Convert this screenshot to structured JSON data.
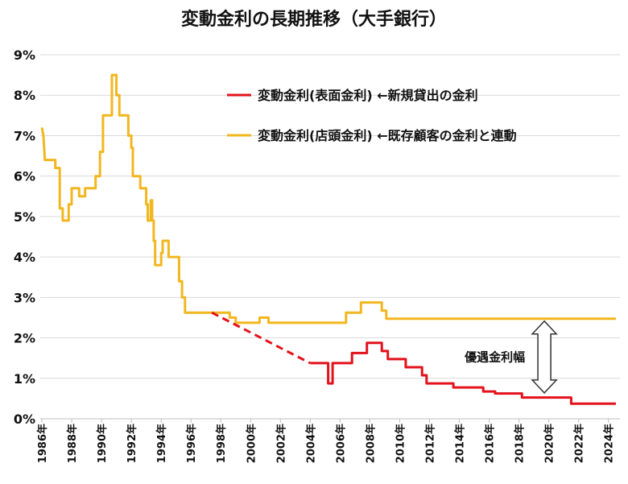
{
  "chart_data": {
    "type": "line",
    "title": "変動金利の長期推移（大手銀行）",
    "y_unit": "%",
    "ylim": [
      0,
      9
    ],
    "y_ticks": [
      "0%",
      "1%",
      "2%",
      "3%",
      "4%",
      "5%",
      "6%",
      "7%",
      "8%",
      "9%"
    ],
    "x_range": [
      1986,
      2024.5
    ],
    "x_ticks": [
      "1986年",
      "1988年",
      "1990年",
      "1992年",
      "1994年",
      "1996年",
      "1998年",
      "2000年",
      "2002年",
      "2004年",
      "2006年",
      "2008年",
      "2010年",
      "2012年",
      "2014年",
      "2016年",
      "2018年",
      "2020年",
      "2022年",
      "2024年"
    ],
    "grid": "horizontal",
    "legend_position": "top-right",
    "series": [
      {
        "name": "変動金利(店頭金利) ←既存顧客の金利と連動",
        "color": "#f2b71f",
        "style": "solid",
        "points": [
          [
            1986.0,
            7.2
          ],
          [
            1986.1,
            7.0
          ],
          [
            1986.2,
            6.4
          ],
          [
            1986.9,
            6.4
          ],
          [
            1986.9,
            6.2
          ],
          [
            1987.2,
            6.2
          ],
          [
            1987.2,
            5.2
          ],
          [
            1987.4,
            5.2
          ],
          [
            1987.4,
            4.9
          ],
          [
            1987.8,
            4.9
          ],
          [
            1987.8,
            5.3
          ],
          [
            1988.0,
            5.3
          ],
          [
            1988.0,
            5.7
          ],
          [
            1988.5,
            5.7
          ],
          [
            1988.5,
            5.5
          ],
          [
            1988.9,
            5.5
          ],
          [
            1988.9,
            5.7
          ],
          [
            1989.6,
            5.7
          ],
          [
            1989.6,
            6.0
          ],
          [
            1989.9,
            6.0
          ],
          [
            1989.9,
            6.6
          ],
          [
            1990.1,
            6.6
          ],
          [
            1990.1,
            7.5
          ],
          [
            1990.7,
            7.5
          ],
          [
            1990.7,
            8.5
          ],
          [
            1991.0,
            8.5
          ],
          [
            1991.0,
            8.0
          ],
          [
            1991.2,
            8.0
          ],
          [
            1991.2,
            7.5
          ],
          [
            1991.8,
            7.5
          ],
          [
            1991.8,
            7.0
          ],
          [
            1992.0,
            7.0
          ],
          [
            1992.0,
            6.7
          ],
          [
            1992.1,
            6.7
          ],
          [
            1992.1,
            6.0
          ],
          [
            1992.6,
            6.0
          ],
          [
            1992.6,
            5.7
          ],
          [
            1993.0,
            5.7
          ],
          [
            1993.0,
            5.3
          ],
          [
            1993.1,
            5.3
          ],
          [
            1993.1,
            4.9
          ],
          [
            1993.3,
            4.9
          ],
          [
            1993.3,
            5.4
          ],
          [
            1993.4,
            5.4
          ],
          [
            1993.4,
            4.9
          ],
          [
            1993.5,
            4.9
          ],
          [
            1993.5,
            4.4
          ],
          [
            1993.6,
            4.4
          ],
          [
            1993.6,
            3.8
          ],
          [
            1994.0,
            3.8
          ],
          [
            1994.0,
            4.1
          ],
          [
            1994.1,
            4.1
          ],
          [
            1994.1,
            4.4
          ],
          [
            1994.5,
            4.4
          ],
          [
            1994.5,
            4.0
          ],
          [
            1995.2,
            4.0
          ],
          [
            1995.2,
            3.4
          ],
          [
            1995.4,
            3.4
          ],
          [
            1995.4,
            3.0
          ],
          [
            1995.6,
            3.0
          ],
          [
            1995.6,
            2.625
          ],
          [
            1997.4,
            2.625
          ],
          [
            1997.4,
            2.625
          ],
          [
            1998.0,
            2.625
          ],
          [
            1998.0,
            2.625
          ],
          [
            1998.6,
            2.625
          ],
          [
            1998.6,
            2.5
          ],
          [
            1999.0,
            2.5
          ],
          [
            1999.0,
            2.375
          ],
          [
            2000.6,
            2.375
          ],
          [
            2000.6,
            2.5
          ],
          [
            2001.2,
            2.5
          ],
          [
            2001.2,
            2.375
          ],
          [
            2006.4,
            2.375
          ],
          [
            2006.4,
            2.625
          ],
          [
            2007.4,
            2.625
          ],
          [
            2007.4,
            2.875
          ],
          [
            2008.8,
            2.875
          ],
          [
            2008.8,
            2.675
          ],
          [
            2009.1,
            2.675
          ],
          [
            2009.1,
            2.475
          ],
          [
            2024.5,
            2.475
          ]
        ]
      },
      {
        "name": "変動金利(表面金利) ←新規貸出の金利",
        "color": "#e3121b",
        "style": "solid",
        "dashed_segment": [
          [
            1997.4,
            2.625
          ],
          [
            2004.0,
            1.375
          ]
        ],
        "points": [
          [
            2004.0,
            1.375
          ],
          [
            2005.2,
            1.375
          ],
          [
            2005.2,
            0.875
          ],
          [
            2005.5,
            0.875
          ],
          [
            2005.5,
            1.375
          ],
          [
            2006.8,
            1.375
          ],
          [
            2006.8,
            1.625
          ],
          [
            2007.8,
            1.625
          ],
          [
            2007.8,
            1.875
          ],
          [
            2008.8,
            1.875
          ],
          [
            2008.8,
            1.675
          ],
          [
            2009.2,
            1.675
          ],
          [
            2009.2,
            1.475
          ],
          [
            2010.4,
            1.475
          ],
          [
            2010.4,
            1.275
          ],
          [
            2011.5,
            1.275
          ],
          [
            2011.5,
            1.075
          ],
          [
            2011.8,
            1.075
          ],
          [
            2011.8,
            0.875
          ],
          [
            2013.6,
            0.875
          ],
          [
            2013.6,
            0.775
          ],
          [
            2015.6,
            0.775
          ],
          [
            2015.6,
            0.675
          ],
          [
            2016.4,
            0.675
          ],
          [
            2016.4,
            0.625
          ],
          [
            2018.2,
            0.625
          ],
          [
            2018.2,
            0.525
          ],
          [
            2021.5,
            0.525
          ],
          [
            2021.5,
            0.375
          ],
          [
            2024.5,
            0.375
          ]
        ]
      }
    ],
    "annotations": [
      {
        "text": "優遇金利幅",
        "at_year": 2019.7,
        "from_value": 2.475,
        "to_value": 0.6
      }
    ]
  }
}
